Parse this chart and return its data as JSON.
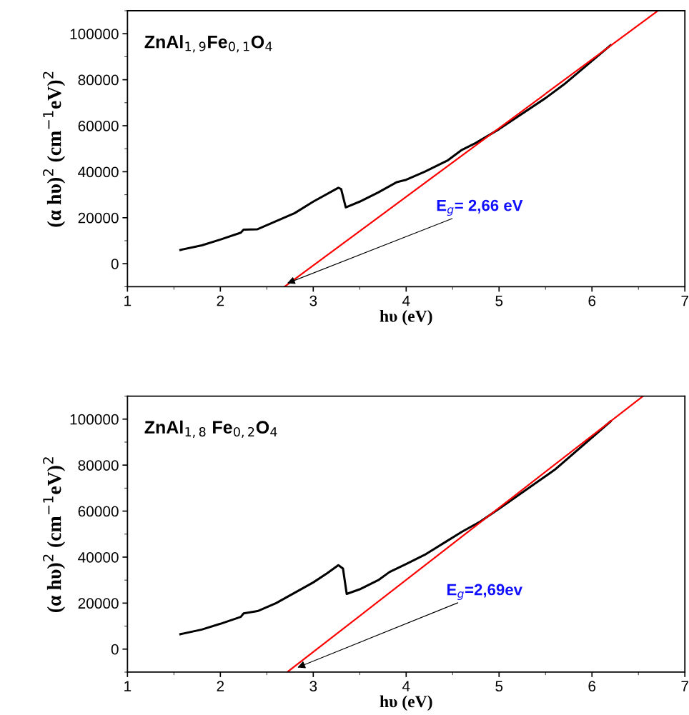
{
  "chart_data": [
    {
      "type": "line",
      "xlabel": "hυ (eV)",
      "ylabel": "(α hυ)$^{2}$ (cm$^{−1}$eV)$^{2}$",
      "xlim": [
        1,
        7
      ],
      "ylim": [
        -10000,
        110000
      ],
      "xticks": [
        1,
        2,
        3,
        4,
        5,
        6,
        7
      ],
      "yticks": [
        0,
        20000,
        40000,
        60000,
        80000,
        100000
      ],
      "grid": false,
      "legend": false,
      "annotations": [
        "ZnAl$_{1,9}$Fe$_{0,1}$O$_{4}$",
        {
          "text": "E$_{g}$= 2,66 eV",
          "x": 2.72,
          "y": -8500
        }
      ],
      "series": [
        {
          "color": "#000000",
          "x": [
            1.57,
            1.8,
            2.0,
            2.22,
            2.25,
            2.4,
            2.6,
            2.8,
            3.0,
            3.27,
            3.3,
            3.35,
            3.5,
            3.7,
            3.9,
            4.0,
            4.2,
            4.45,
            4.6,
            4.75,
            5.0,
            5.5,
            5.7,
            6.2
          ],
          "values": [
            6000,
            8000,
            10500,
            13500,
            14800,
            15000,
            18500,
            22000,
            27000,
            33000,
            32500,
            24500,
            27000,
            31000,
            35500,
            36500,
            40000,
            45000,
            49500,
            52500,
            58500,
            72000,
            78000,
            95000
          ]
        },
        {
          "color": "#ff0000",
          "x": [
            2.69,
            6.71
          ],
          "values": [
            -10000,
            110000
          ]
        }
      ]
    },
    {
      "type": "line",
      "xlabel": "hυ (eV)",
      "ylabel": "(α hυ)$^{2}$ (cm$^{−1}$eV)$^{2}$",
      "xlim": [
        1,
        7
      ],
      "ylim": [
        -10000,
        110000
      ],
      "xticks": [
        1,
        2,
        3,
        4,
        5,
        6,
        7
      ],
      "yticks": [
        0,
        20000,
        40000,
        60000,
        80000,
        100000
      ],
      "grid": false,
      "legend": false,
      "annotations": [
        "ZnAl$_{1,8}$ Fe$_{0,2}$O$_{4}$",
        {
          "text": "E$_{g}$=2,69ev",
          "x": 2.83,
          "y": -8000
        }
      ],
      "series": [
        {
          "color": "#000000",
          "x": [
            1.57,
            1.8,
            2.0,
            2.22,
            2.25,
            2.4,
            2.6,
            2.8,
            3.0,
            3.15,
            3.27,
            3.32,
            3.36,
            3.5,
            3.7,
            3.82,
            4.0,
            4.2,
            4.4,
            4.6,
            4.8,
            5.0,
            5.6,
            6.2
          ],
          "values": [
            6500,
            8500,
            11000,
            14000,
            15500,
            16500,
            20000,
            24500,
            29000,
            33000,
            36500,
            35000,
            24000,
            26000,
            30000,
            33500,
            37000,
            41000,
            46000,
            51000,
            55500,
            61000,
            78000,
            99000
          ]
        },
        {
          "color": "#ff0000",
          "x": [
            2.72,
            6.55
          ],
          "values": [
            -10000,
            110000
          ]
        }
      ]
    }
  ]
}
